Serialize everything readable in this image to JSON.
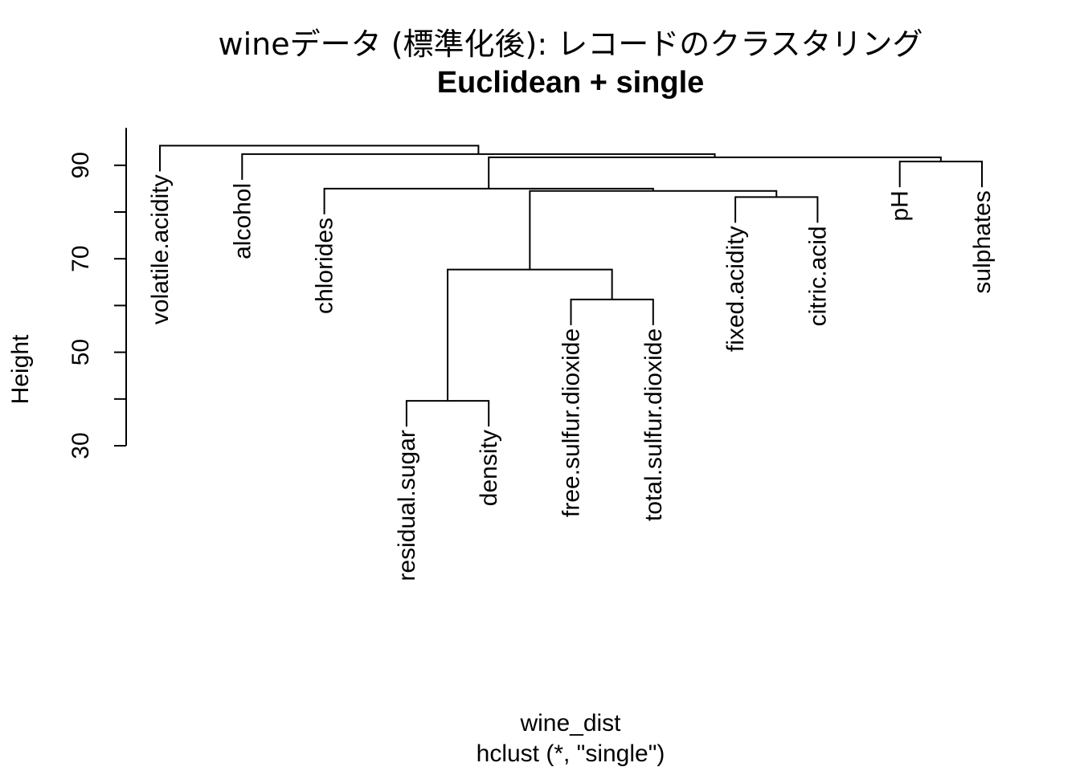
{
  "title": "wineデータ (標準化後): レコードのクラスタリング",
  "subtitle": "Euclidean + single",
  "xlabel": "wine_dist",
  "xlabel2": "hclust (*, \"single\")",
  "ylabel": "Height",
  "chart_data": {
    "type": "dendrogram",
    "method": "single",
    "distance": "Euclidean",
    "ylim": [
      30,
      98
    ],
    "yticks": [
      "30",
      "50",
      "70",
      "90"
    ],
    "minor_yticks": [
      40,
      60,
      80
    ],
    "leaves": [
      {
        "label": "volatile.acidity",
        "join_height": 94.2
      },
      {
        "label": "alcohol",
        "join_height": 92.4
      },
      {
        "label": "chlorides",
        "join_height": 85.0
      },
      {
        "label": "residual.sugar",
        "join_height": 39.6
      },
      {
        "label": "density",
        "join_height": 39.6
      },
      {
        "label": "free.sulfur.dioxide",
        "join_height": 61.3
      },
      {
        "label": "total.sulfur.dioxide",
        "join_height": 61.3
      },
      {
        "label": "fixed.acidity",
        "join_height": 83.2
      },
      {
        "label": "citric.acid",
        "join_height": 83.2
      },
      {
        "label": "pH",
        "join_height": 90.8
      },
      {
        "label": "sulphates",
        "join_height": 90.8
      }
    ],
    "merges": [
      {
        "left": "leaf:3",
        "right": "leaf:4",
        "height": 39.6
      },
      {
        "left": "leaf:5",
        "right": "leaf:6",
        "height": 61.3
      },
      {
        "left": "node:0",
        "right": "node:1",
        "height": 67.7
      },
      {
        "left": "leaf:7",
        "right": "leaf:8",
        "height": 83.2
      },
      {
        "left": "node:2",
        "right": "node:3",
        "height": 84.5
      },
      {
        "left": "leaf:2",
        "right": "node:4",
        "height": 85.0
      },
      {
        "left": "leaf:9",
        "right": "leaf:10",
        "height": 90.8
      },
      {
        "left": "node:5",
        "right": "node:6",
        "height": 91.7
      },
      {
        "left": "leaf:1",
        "right": "node:7",
        "height": 92.4
      },
      {
        "left": "leaf:0",
        "right": "node:8",
        "height": 94.2
      }
    ]
  }
}
